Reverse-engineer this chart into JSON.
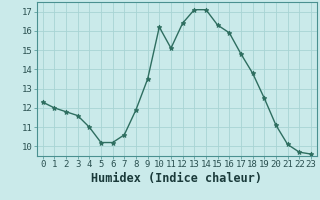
{
  "x": [
    0,
    1,
    2,
    3,
    4,
    5,
    6,
    7,
    8,
    9,
    10,
    11,
    12,
    13,
    14,
    15,
    16,
    17,
    18,
    19,
    20,
    21,
    22,
    23
  ],
  "y": [
    12.3,
    12.0,
    11.8,
    11.6,
    11.0,
    10.2,
    10.2,
    10.6,
    11.9,
    13.5,
    16.2,
    15.1,
    16.4,
    17.1,
    17.1,
    16.3,
    15.9,
    14.8,
    13.8,
    12.5,
    11.1,
    10.1,
    9.7,
    9.6
  ],
  "xlabel": "Humidex (Indice chaleur)",
  "xlim": [
    -0.5,
    23.5
  ],
  "ylim": [
    9.5,
    17.5
  ],
  "yticks": [
    10,
    11,
    12,
    13,
    14,
    15,
    16,
    17
  ],
  "xticks": [
    0,
    1,
    2,
    3,
    4,
    5,
    6,
    7,
    8,
    9,
    10,
    11,
    12,
    13,
    14,
    15,
    16,
    17,
    18,
    19,
    20,
    21,
    22,
    23
  ],
  "line_color": "#2e6e60",
  "marker": "*",
  "marker_size": 3.5,
  "linewidth": 1.0,
  "bg_color": "#caeaea",
  "grid_color": "#a8d4d4",
  "tick_fontsize": 6.5,
  "xlabel_fontsize": 8.5,
  "spine_color": "#4a9090"
}
